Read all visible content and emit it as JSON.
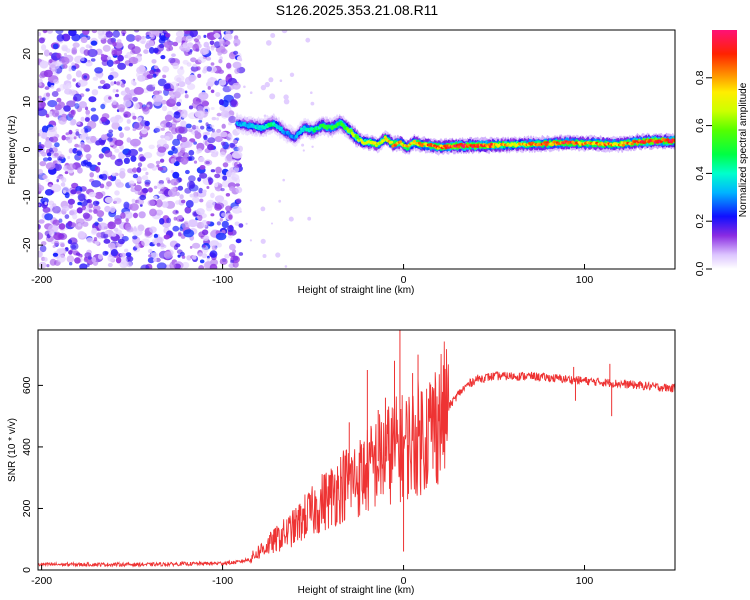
{
  "title": "S126.2025.353.21.08.R11",
  "chart_data": [
    {
      "type": "heatmap",
      "name": "spectrogram",
      "xlabel": "Height of straight line (km)",
      "ylabel": "Frequency (Hz)",
      "xlim": [
        -202,
        150
      ],
      "ylim": [
        -25,
        25
      ],
      "xticks": [
        -200,
        -100,
        0,
        100
      ],
      "yticks": [
        -20,
        -10,
        0,
        10,
        20
      ],
      "colorbar": {
        "label": "Normalized spectral amplitude",
        "range": [
          0,
          1
        ],
        "ticks": [
          "0.0",
          "0.2",
          "0.4",
          "0.6",
          "0.8"
        ]
      },
      "noise_region_x": [
        -202,
        -92
      ],
      "signal_track": {
        "x": [
          -92,
          -85,
          -78,
          -72,
          -65,
          -60,
          -55,
          -50,
          -45,
          -40,
          -35,
          -30,
          -26,
          -22,
          -18,
          -14,
          -10,
          -6,
          -2,
          2,
          6,
          10,
          15,
          20,
          30,
          40,
          50,
          60,
          70,
          80,
          90,
          100,
          110,
          120,
          130,
          140,
          150
        ],
        "freq": [
          5.5,
          5,
          4.5,
          5.5,
          3.5,
          2.5,
          4.5,
          4,
          5,
          4.5,
          5.5,
          4,
          2.5,
          1.5,
          1.5,
          1,
          2.5,
          1,
          1.5,
          0.5,
          1.5,
          1,
          0.8,
          0.5,
          0.8,
          0.8,
          0.9,
          1,
          1.1,
          1.2,
          1.4,
          1.3,
          1.2,
          1.1,
          1.6,
          1.8,
          1.8
        ],
        "amp": [
          0.3,
          0.35,
          0.4,
          0.45,
          0.3,
          0.3,
          0.4,
          0.45,
          0.5,
          0.5,
          0.55,
          0.6,
          0.65,
          0.7,
          0.75,
          0.7,
          0.75,
          0.8,
          0.8,
          0.75,
          0.8,
          0.8,
          0.85,
          0.85,
          0.95,
          0.95,
          0.85,
          0.75,
          0.8,
          0.85,
          0.9,
          0.8,
          0.85,
          0.8,
          0.9,
          0.95,
          0.95
        ]
      }
    },
    {
      "type": "line",
      "name": "snr",
      "xlabel": "Height of straight line (km)",
      "ylabel": "SNR (10 * v/v)",
      "xlim": [
        -202,
        150
      ],
      "ylim": [
        0,
        780
      ],
      "xticks": [
        -200,
        -100,
        0,
        100
      ],
      "yticks": [
        0,
        200,
        400,
        600
      ],
      "color": "#ee3333",
      "series": [
        {
          "name": "SNR",
          "x": [
            -202,
            -180,
            -160,
            -140,
            -120,
            -100,
            -92,
            -85,
            -80,
            -75,
            -70,
            -65,
            -60,
            -55,
            -50,
            -45,
            -40,
            -35,
            -30,
            -25,
            -20,
            -15,
            -10,
            -5,
            0,
            5,
            10,
            15,
            20,
            25,
            30,
            35,
            40,
            50,
            60,
            70,
            80,
            90,
            100,
            110,
            120,
            130,
            140,
            150
          ],
          "y": [
            18,
            18,
            18,
            18,
            20,
            22,
            25,
            35,
            60,
            80,
            100,
            120,
            140,
            170,
            190,
            220,
            240,
            270,
            290,
            300,
            320,
            350,
            370,
            390,
            400,
            420,
            440,
            460,
            500,
            530,
            570,
            600,
            620,
            630,
            630,
            630,
            625,
            620,
            615,
            610,
            605,
            600,
            595,
            590
          ],
          "spikes": [
            {
              "x": -38,
              "y": 310
            },
            {
              "x": -30,
              "y": 480
            },
            {
              "x": -22,
              "y": 410
            },
            {
              "x": -20,
              "y": 650
            },
            {
              "x": -14,
              "y": 520
            },
            {
              "x": -10,
              "y": 560
            },
            {
              "x": -5,
              "y": 680
            },
            {
              "x": -2,
              "y": 780
            },
            {
              "x": 0,
              "y": 60
            },
            {
              "x": 5,
              "y": 640
            },
            {
              "x": 8,
              "y": 700
            },
            {
              "x": 10,
              "y": 520
            },
            {
              "x": 94,
              "y": 660
            },
            {
              "x": 95,
              "y": 550
            },
            {
              "x": 114,
              "y": 670
            },
            {
              "x": 115,
              "y": 500
            }
          ]
        }
      ]
    }
  ]
}
